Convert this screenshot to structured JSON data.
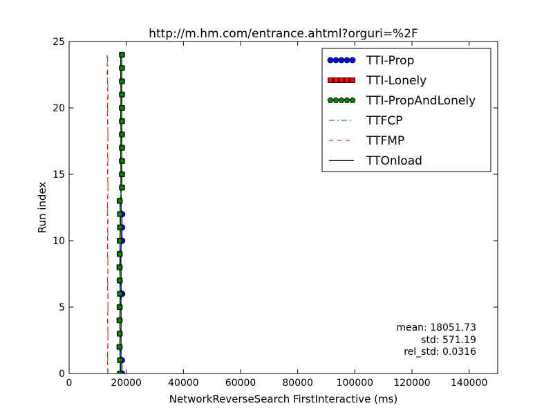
{
  "chart_data": {
    "type": "line",
    "title": "http://m.hm.com/entrance.ahtml?orguri=%2F",
    "xlabel": "NetworkReverseSearch FirstInteractive (ms)",
    "ylabel": "Run index",
    "xlim": [
      0,
      150000
    ],
    "ylim": [
      0,
      25
    ],
    "x_ticks": [
      0,
      20000,
      40000,
      60000,
      80000,
      100000,
      120000,
      140000
    ],
    "x_tick_labels": [
      "0",
      "20000",
      "40000",
      "60000",
      "80000",
      "100000",
      "120000",
      "140000"
    ],
    "y_ticks": [
      0,
      5,
      10,
      15,
      20,
      25
    ],
    "y_tick_labels": [
      "0",
      "5",
      "10",
      "15",
      "20",
      "25"
    ],
    "grid": false,
    "legend_position": "top-right",
    "annotations": [
      "mean: 18051.73",
      "std: 571.19",
      "rel_std: 0.0316"
    ],
    "y": [
      0,
      1,
      2,
      3,
      4,
      5,
      6,
      7,
      8,
      9,
      10,
      11,
      12,
      13,
      14,
      15,
      16,
      17,
      18,
      19,
      20,
      21,
      22,
      23,
      24
    ],
    "series": [
      {
        "name": "TTI-Prop",
        "style": "marker-line",
        "marker": "circle",
        "color": "#0000ff",
        "values": [
          18600,
          18500,
          17700,
          17700,
          17700,
          17700,
          18600,
          17700,
          17700,
          17700,
          18600,
          18600,
          18600,
          17700,
          18500,
          18500,
          18500,
          18500,
          18500,
          18500,
          18500,
          18500,
          18500,
          18500,
          18500
        ]
      },
      {
        "name": "TTI-Lonely",
        "style": "marker-line",
        "marker": "square",
        "color": "#ff0000",
        "values": [
          17800,
          17800,
          17600,
          17700,
          17600,
          17700,
          17800,
          17700,
          17600,
          17700,
          17700,
          17800,
          17800,
          17700,
          18500,
          18500,
          18500,
          18500,
          18500,
          18500,
          18500,
          18500,
          18500,
          18500,
          18500
        ]
      },
      {
        "name": "TTI-PropAndLonely",
        "style": "marker-line",
        "marker": "pentagon",
        "color": "#008000",
        "values": [
          17800,
          17800,
          17600,
          17700,
          17600,
          17700,
          17800,
          17700,
          17600,
          17700,
          17700,
          17800,
          17800,
          17700,
          18500,
          18500,
          18500,
          18500,
          18500,
          18500,
          18500,
          18500,
          18500,
          18500,
          18500
        ]
      },
      {
        "name": "TTFCP",
        "style": "dashdot",
        "color": "#008000",
        "values": [
          13600,
          13500,
          13600,
          13600,
          13500,
          13600,
          13600,
          13500,
          13600,
          13500,
          13500,
          13600,
          13500,
          13500,
          13600,
          13500,
          13600,
          13500,
          13600,
          13500,
          13500,
          13600,
          13500,
          13500,
          13500
        ]
      },
      {
        "name": "TTFMP",
        "style": "dashed",
        "color": "#ff0000",
        "values": [
          13500,
          13400,
          13500,
          13600,
          13400,
          13600,
          13500,
          13400,
          13600,
          13400,
          13400,
          13500,
          13400,
          13400,
          13600,
          13400,
          13500,
          13400,
          13600,
          13400,
          13400,
          13500,
          13400,
          13300,
          13300
        ]
      },
      {
        "name": "TTOnload",
        "style": "solid",
        "color": "#000000",
        "values": [
          18100,
          18100,
          18200,
          18100,
          18200,
          18100,
          18100,
          18200,
          18100,
          18100,
          18200,
          18100,
          18100,
          18200,
          18100,
          18200,
          18100,
          18100,
          18200,
          18100,
          18100,
          18200,
          18100,
          18100,
          18100
        ]
      }
    ]
  }
}
